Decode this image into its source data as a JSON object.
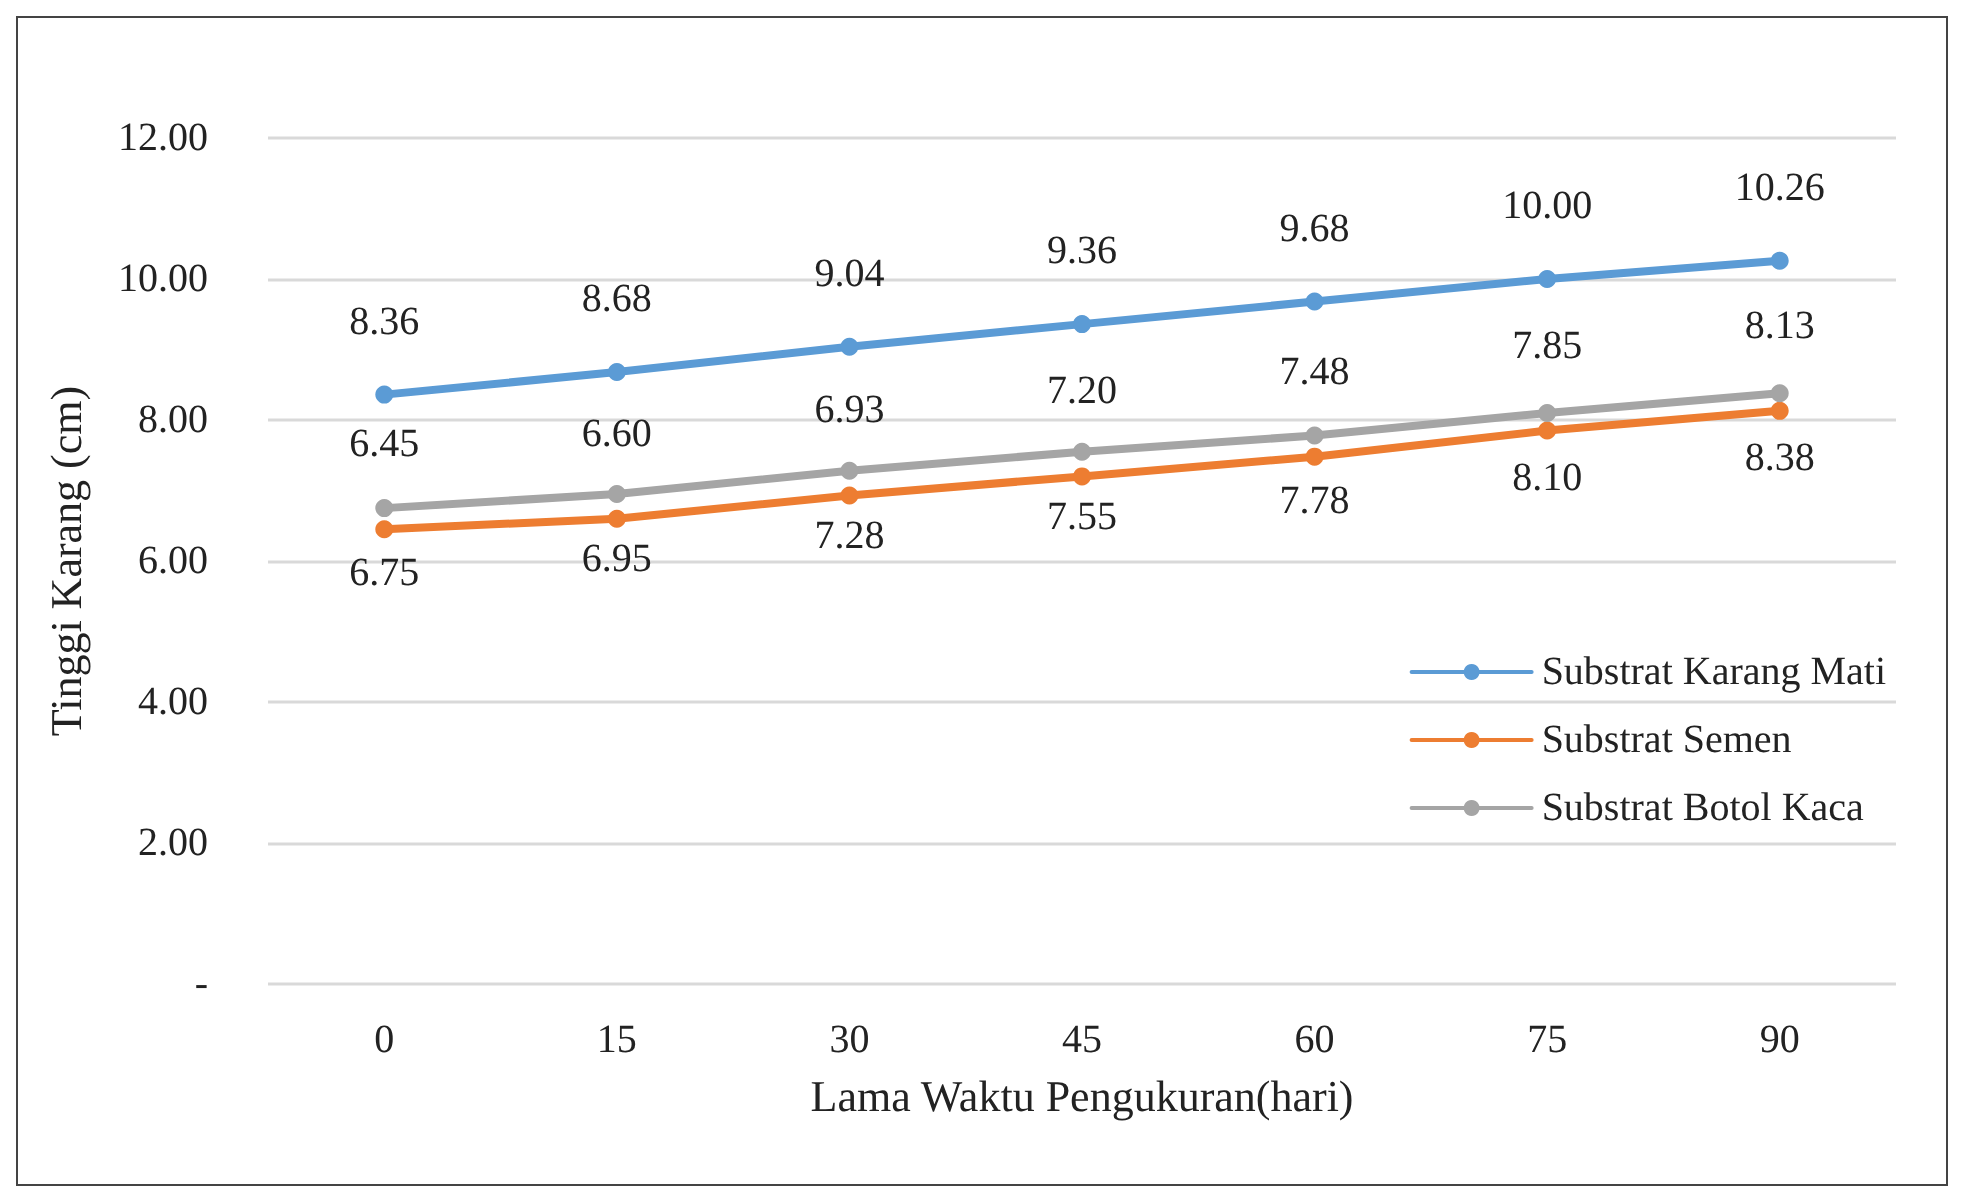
{
  "chart_data": {
    "type": "line",
    "xlabel": "Lama Waktu Pengukuran(hari)",
    "ylabel": "Tinggi Karang (cm)",
    "categories": [
      "0",
      "15",
      "30",
      "45",
      "60",
      "75",
      "90"
    ],
    "ylim": [
      0,
      12
    ],
    "yticks": [
      {
        "value": 0,
        "label": "-"
      },
      {
        "value": 2,
        "label": "2.00"
      },
      {
        "value": 4,
        "label": "4.00"
      },
      {
        "value": 6,
        "label": "6.00"
      },
      {
        "value": 8,
        "label": "8.00"
      },
      {
        "value": 10,
        "label": "10.00"
      },
      {
        "value": 12,
        "label": "12.00"
      }
    ],
    "series": [
      {
        "name": "Substrat Karang Mati",
        "color": "#5b9bd5",
        "values": [
          8.36,
          8.68,
          9.04,
          9.36,
          9.68,
          10.0,
          10.26
        ],
        "value_labels": [
          "8.36",
          "8.68",
          "9.04",
          "9.36",
          "9.68",
          "10.00",
          "10.26"
        ]
      },
      {
        "name": "Substrat Semen",
        "color": "#ed7d31",
        "values": [
          6.45,
          6.6,
          6.93,
          7.2,
          7.48,
          7.85,
          8.13
        ],
        "value_labels": [
          "6.45",
          "6.60",
          "6.93",
          "7.20",
          "7.48",
          "7.85",
          "8.13"
        ]
      },
      {
        "name": "Substrat Botol Kaca",
        "color": "#a5a5a5",
        "values": [
          6.75,
          6.95,
          7.28,
          7.55,
          7.78,
          8.1,
          8.38
        ],
        "value_labels": [
          "6.75",
          "6.95",
          "7.28",
          "7.55",
          "7.78",
          "8.10",
          "8.38"
        ]
      }
    ],
    "grid": "y",
    "legend": "bottom right",
    "marker": "circle",
    "line_style": "solid"
  }
}
